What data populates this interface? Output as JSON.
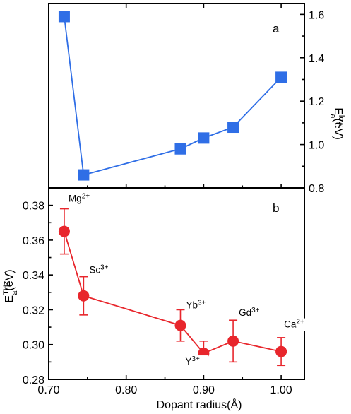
{
  "chart_data": [
    {
      "type": "line",
      "panel": "a",
      "panel_label": "a",
      "x": [
        0.72,
        0.745,
        0.87,
        0.9,
        0.938,
        1.0
      ],
      "series": [
        {
          "name": "",
          "values": [
            1.59,
            0.86,
            0.98,
            1.03,
            1.08,
            1.31
          ],
          "color": "#2f6ee6",
          "marker": "square"
        }
      ],
      "xlim": [
        0.7,
        1.03
      ],
      "ylim": [
        0.8,
        1.65
      ],
      "y_axis_side": "right",
      "yticks": [
        "0.8",
        "1.0",
        "1.2",
        "1.4",
        "1.6"
      ],
      "ylabel_parts": {
        "base": "E",
        "sup": "low",
        "sub": "a",
        "tail": "(eV)"
      },
      "grid": false
    },
    {
      "type": "line",
      "panel": "b",
      "panel_label": "b",
      "x": [
        0.72,
        0.745,
        0.87,
        0.9,
        0.938,
        1.0
      ],
      "series": [
        {
          "name": "",
          "values": [
            0.365,
            0.328,
            0.311,
            0.295,
            0.302,
            0.296
          ],
          "error": [
            0.013,
            0.011,
            0.009,
            0.007,
            0.012,
            0.008
          ],
          "color": "#e8262c",
          "marker": "circle"
        }
      ],
      "point_labels": [
        {
          "base": "Mg",
          "sup": "2+"
        },
        {
          "base": "Sc",
          "sup": "3+"
        },
        {
          "base": "Yb",
          "sup": "3+"
        },
        {
          "base": "Y",
          "sup": "3+"
        },
        {
          "base": "Gd",
          "sup": "3+"
        },
        {
          "base": "Ca",
          "sup": "2+"
        }
      ],
      "xlim": [
        0.7,
        1.03
      ],
      "ylim": [
        0.28,
        0.39
      ],
      "yticks": [
        "0.28",
        "0.30",
        "0.32",
        "0.34",
        "0.36",
        "0.38"
      ],
      "xticks": [
        "0.70",
        "0.80",
        "0.90",
        "1.00"
      ],
      "ylabel_parts": {
        "base": "E",
        "sup": "THz",
        "sub": "a",
        "tail": "(eV)"
      },
      "xlabel": "Dopant radius(Å)",
      "grid": false
    }
  ]
}
